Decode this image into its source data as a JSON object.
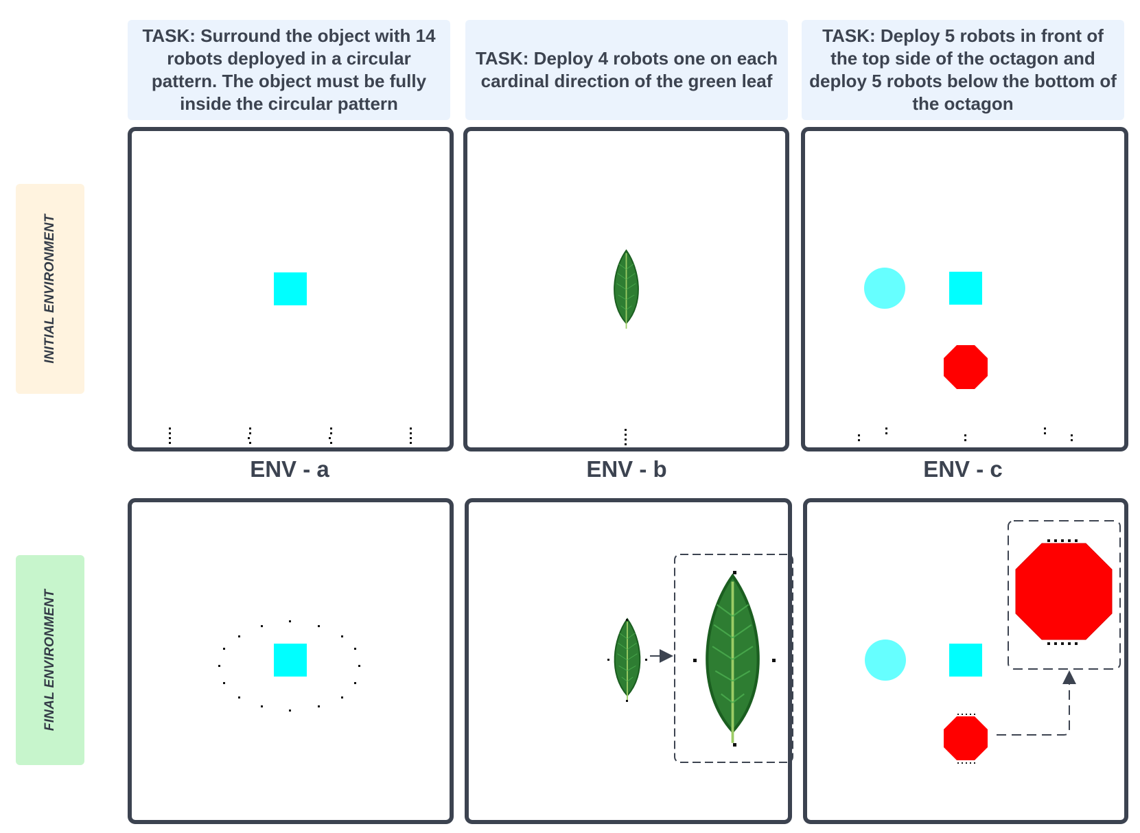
{
  "tasks": [
    {
      "text": "TASK: Surround the object with 14 robots deployed in a circular pattern. The object must be fully inside the circular pattern"
    },
    {
      "text": "TASK: Deploy 4 robots one on each cardinal direction of the green leaf"
    },
    {
      "text": "TASK: Deploy 5 robots in front of the top side of the octagon and deploy 5 robots below the bottom of the octagon"
    }
  ],
  "row_labels": {
    "initial": "INITIAL ENVIRONMENT",
    "final": "FINAL ENVIRONMENT"
  },
  "env_labels": [
    "ENV - a",
    "ENV - b",
    "ENV - c"
  ],
  "colors": {
    "header_bg": "#ebf3fd",
    "initial_label_bg": "#fff3df",
    "final_label_bg": "#c7f5cc",
    "panel_border": "#3c4350",
    "cyan": "#00ffff",
    "light_cyan": "#66ffff",
    "red": "#ff0000",
    "leaf_green": "#2e7d32",
    "robot": "#111111"
  },
  "icons": {
    "square": "cyan-square-icon",
    "circle": "cyan-circle-icon",
    "octagon": "red-octagon-icon",
    "leaf": "green-leaf-icon",
    "robot": "robot-dot-icon",
    "arrow": "arrow-right-icon"
  }
}
